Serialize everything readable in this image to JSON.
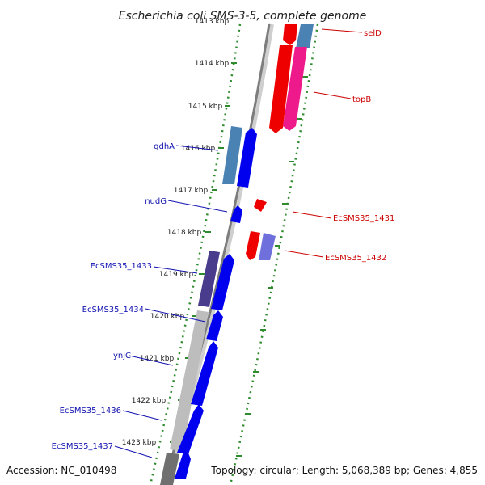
{
  "title": "Escherichia coli SMS-3-5, complete genome",
  "accession_text": "Accession: NC_010498",
  "topology_text": "Topology: circular; Length: 5,068,389 bp; Genes: 4,855",
  "colors": {
    "backbone": "#8a8a8a",
    "tick_dots": "#2e8b2e",
    "forward_label": "#1010b0",
    "reverse_label": "#cc0000",
    "blue": "#0000ee",
    "steel_blue": "#4a82b4",
    "red": "#ee0000",
    "pink": "#ee1a8c",
    "purple": "#7070dd",
    "dark_purple": "#4a3c8c",
    "gray": "#bdbdbd",
    "dark_gray": "#707070"
  },
  "kbp_markers": [
    "1413 kbp",
    "1414 kbp",
    "1415 kbp",
    "1416 kbp",
    "1417 kbp",
    "1418 kbp",
    "1419 kbp",
    "1420 kbp",
    "1421 kbp",
    "1422 kbp",
    "1423 kbp"
  ],
  "genes_forward": [
    {
      "name": "gdhA"
    },
    {
      "name": "nudG"
    },
    {
      "name": "EcSMS35_1433"
    },
    {
      "name": "EcSMS35_1434"
    },
    {
      "name": "ynjC"
    },
    {
      "name": "EcSMS35_1436"
    },
    {
      "name": "EcSMS35_1437"
    }
  ],
  "genes_reverse": [
    {
      "name": "selD"
    },
    {
      "name": "topB"
    },
    {
      "name": "EcSMS35_1431"
    },
    {
      "name": "EcSMS35_1432"
    }
  ]
}
